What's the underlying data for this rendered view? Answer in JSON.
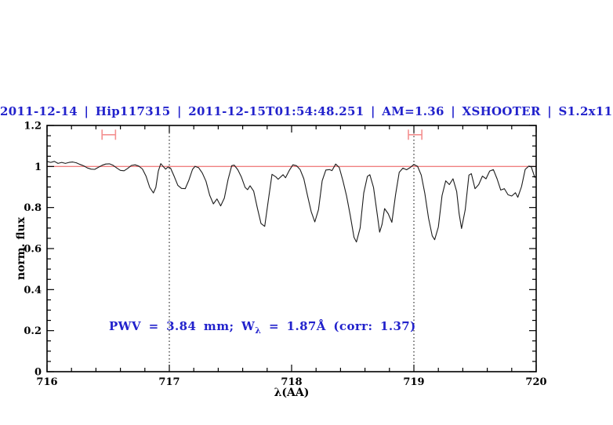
{
  "title": {
    "text": "2011-12-14 | Hip117315 | 2011-12-15T01:54:48.251 | AM=1.36 | XSHOOTER | S1.2x11",
    "color": "#2222cc"
  },
  "chart_data": {
    "type": "line",
    "title": "2011-12-14 | Hip117315 | 2011-12-15T01:54:48.251 | AM=1.36 | XSHOOTER | S1.2x11",
    "xlabel": "λ(AA)",
    "ylabel": "norm. flux",
    "xlim": [
      716,
      720
    ],
    "ylim": [
      0,
      1.2
    ],
    "grid": false,
    "x_major_ticks": [
      716,
      717,
      718,
      719,
      720
    ],
    "x_tick_labels": [
      "716",
      "717",
      "718",
      "719",
      "720"
    ],
    "x_minor_step": 0.2,
    "y_major_ticks": [
      0,
      0.2,
      0.4,
      0.6,
      0.8,
      1,
      1.2
    ],
    "y_tick_labels": [
      "0",
      "0.2",
      "0.4",
      "0.6",
      "0.8",
      "1",
      "1.2"
    ],
    "y_minor_step": 0.05,
    "frame_color": "#000000",
    "continuum_line": {
      "y": 1.0,
      "color": "#f08080"
    },
    "dotted_vlines": {
      "x": [
        717,
        719
      ],
      "color": "#000000",
      "style": "dotted"
    },
    "window_markers": {
      "y": 1.155,
      "color": "#f49090",
      "ranges": [
        [
          716.45,
          716.56
        ],
        [
          718.955,
          719.065
        ]
      ]
    },
    "annotation": {
      "prefix": "PWV = 3.84 mm; W",
      "sub": "λ",
      "suffix": " = 1.87Å (corr: 1.37)",
      "color": "#2222cc"
    },
    "series": [
      {
        "name": "telluric-spectrum",
        "color": "#1c1c1c",
        "points": [
          [
            716.0,
            1.025
          ],
          [
            716.03,
            1.02
          ],
          [
            716.06,
            1.025
          ],
          [
            716.09,
            1.015
          ],
          [
            716.12,
            1.02
          ],
          [
            716.15,
            1.015
          ],
          [
            716.18,
            1.02
          ],
          [
            716.21,
            1.022
          ],
          [
            716.24,
            1.018
          ],
          [
            716.27,
            1.01
          ],
          [
            716.3,
            1.003
          ],
          [
            716.33,
            0.993
          ],
          [
            716.36,
            0.987
          ],
          [
            716.39,
            0.986
          ],
          [
            716.42,
            0.996
          ],
          [
            716.45,
            1.006
          ],
          [
            716.48,
            1.012
          ],
          [
            716.51,
            1.013
          ],
          [
            716.54,
            1.006
          ],
          [
            716.57,
            0.993
          ],
          [
            716.6,
            0.981
          ],
          [
            716.63,
            0.979
          ],
          [
            716.66,
            0.991
          ],
          [
            716.69,
            1.005
          ],
          [
            716.72,
            1.008
          ],
          [
            716.75,
            1.002
          ],
          [
            716.78,
            0.988
          ],
          [
            716.81,
            0.952
          ],
          [
            716.84,
            0.898
          ],
          [
            716.87,
            0.871
          ],
          [
            716.89,
            0.898
          ],
          [
            716.91,
            0.978
          ],
          [
            716.93,
            1.014
          ],
          [
            716.95,
            1.0
          ],
          [
            716.97,
            0.987
          ],
          [
            716.99,
            0.998
          ],
          [
            717.01,
            0.992
          ],
          [
            717.04,
            0.952
          ],
          [
            717.07,
            0.908
          ],
          [
            717.1,
            0.893
          ],
          [
            717.13,
            0.892
          ],
          [
            717.16,
            0.934
          ],
          [
            717.19,
            0.986
          ],
          [
            717.21,
            1.001
          ],
          [
            717.24,
            0.994
          ],
          [
            717.27,
            0.968
          ],
          [
            717.3,
            0.928
          ],
          [
            717.33,
            0.86
          ],
          [
            717.36,
            0.818
          ],
          [
            717.39,
            0.842
          ],
          [
            717.42,
            0.808
          ],
          [
            717.45,
            0.846
          ],
          [
            717.48,
            0.936
          ],
          [
            717.51,
            1.004
          ],
          [
            717.53,
            1.007
          ],
          [
            717.56,
            0.984
          ],
          [
            717.59,
            0.948
          ],
          [
            717.62,
            0.898
          ],
          [
            717.64,
            0.887
          ],
          [
            717.66,
            0.906
          ],
          [
            717.69,
            0.88
          ],
          [
            717.72,
            0.798
          ],
          [
            717.75,
            0.722
          ],
          [
            717.78,
            0.708
          ],
          [
            717.81,
            0.838
          ],
          [
            717.84,
            0.962
          ],
          [
            717.87,
            0.95
          ],
          [
            717.89,
            0.938
          ],
          [
            717.93,
            0.96
          ],
          [
            717.95,
            0.945
          ],
          [
            717.98,
            0.98
          ],
          [
            718.01,
            1.008
          ],
          [
            718.04,
            1.004
          ],
          [
            718.07,
            0.985
          ],
          [
            718.1,
            0.94
          ],
          [
            718.13,
            0.858
          ],
          [
            718.16,
            0.78
          ],
          [
            718.19,
            0.73
          ],
          [
            718.22,
            0.79
          ],
          [
            718.25,
            0.93
          ],
          [
            718.28,
            0.983
          ],
          [
            718.31,
            0.985
          ],
          [
            718.33,
            0.98
          ],
          [
            718.36,
            1.012
          ],
          [
            718.39,
            0.995
          ],
          [
            718.42,
            0.93
          ],
          [
            718.45,
            0.855
          ],
          [
            718.48,
            0.76
          ],
          [
            718.51,
            0.655
          ],
          [
            718.53,
            0.632
          ],
          [
            718.56,
            0.7
          ],
          [
            718.59,
            0.87
          ],
          [
            718.62,
            0.952
          ],
          [
            718.64,
            0.96
          ],
          [
            718.67,
            0.898
          ],
          [
            718.7,
            0.768
          ],
          [
            718.72,
            0.68
          ],
          [
            718.74,
            0.718
          ],
          [
            718.76,
            0.795
          ],
          [
            718.79,
            0.77
          ],
          [
            718.82,
            0.728
          ],
          [
            718.85,
            0.862
          ],
          [
            718.88,
            0.972
          ],
          [
            718.91,
            0.992
          ],
          [
            718.94,
            0.984
          ],
          [
            718.97,
            0.995
          ],
          [
            719.0,
            1.01
          ],
          [
            719.03,
            1.001
          ],
          [
            719.06,
            0.958
          ],
          [
            719.09,
            0.868
          ],
          [
            719.12,
            0.748
          ],
          [
            719.15,
            0.662
          ],
          [
            719.17,
            0.643
          ],
          [
            719.2,
            0.705
          ],
          [
            719.23,
            0.858
          ],
          [
            719.26,
            0.93
          ],
          [
            719.29,
            0.912
          ],
          [
            719.32,
            0.94
          ],
          [
            719.35,
            0.878
          ],
          [
            719.37,
            0.77
          ],
          [
            719.39,
            0.698
          ],
          [
            719.42,
            0.79
          ],
          [
            719.45,
            0.958
          ],
          [
            719.47,
            0.965
          ],
          [
            719.5,
            0.892
          ],
          [
            719.53,
            0.912
          ],
          [
            719.56,
            0.953
          ],
          [
            719.59,
            0.94
          ],
          [
            719.62,
            0.978
          ],
          [
            719.65,
            0.985
          ],
          [
            719.68,
            0.94
          ],
          [
            719.71,
            0.885
          ],
          [
            719.74,
            0.892
          ],
          [
            719.77,
            0.862
          ],
          [
            719.8,
            0.856
          ],
          [
            719.83,
            0.872
          ],
          [
            719.85,
            0.85
          ],
          [
            719.88,
            0.902
          ],
          [
            719.91,
            0.986
          ],
          [
            719.94,
            1.002
          ],
          [
            719.96,
            0.998
          ],
          [
            719.99,
            0.945
          ]
        ]
      }
    ]
  }
}
